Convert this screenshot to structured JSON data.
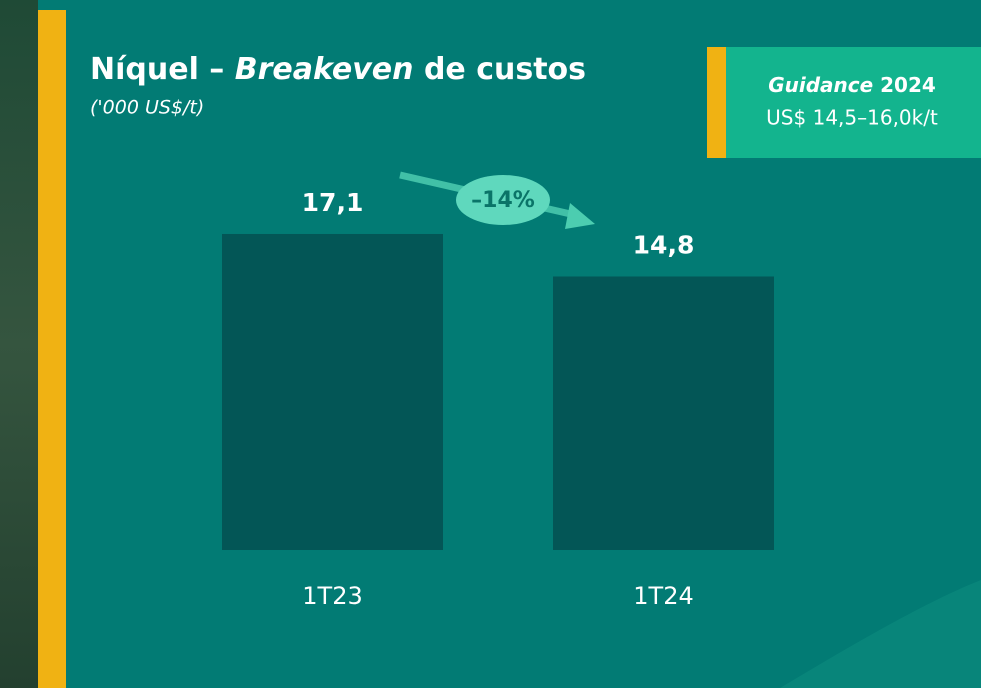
{
  "chart_data": {
    "type": "bar",
    "title": [
      "Níquel – ",
      "Breakeven",
      " de custos"
    ],
    "subtitle": "('000 US$/t)",
    "guidance": {
      "heading": [
        "Guidance",
        " 2024"
      ],
      "text": "US$ 14,5–16,0k/t"
    },
    "categories": [
      "1T23",
      "1T24"
    ],
    "values": [
      17.1,
      14.8
    ],
    "value_labels": [
      "17,1",
      "14,8"
    ],
    "color": "#035656",
    "annotation": "–14%"
  }
}
